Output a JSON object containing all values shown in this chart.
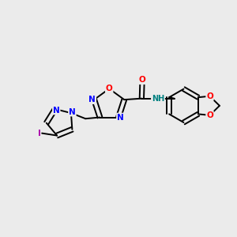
{
  "background_color": "#ebebeb",
  "bond_color": "#000000",
  "figsize": [
    3.0,
    3.0
  ],
  "dpi": 100,
  "atom_colors": {
    "N": "#0000ff",
    "O": "#ff0000",
    "I": "#aa00aa",
    "H": "#008080",
    "C": "#000000"
  },
  "lw": 1.4,
  "fontsize": 7.5
}
